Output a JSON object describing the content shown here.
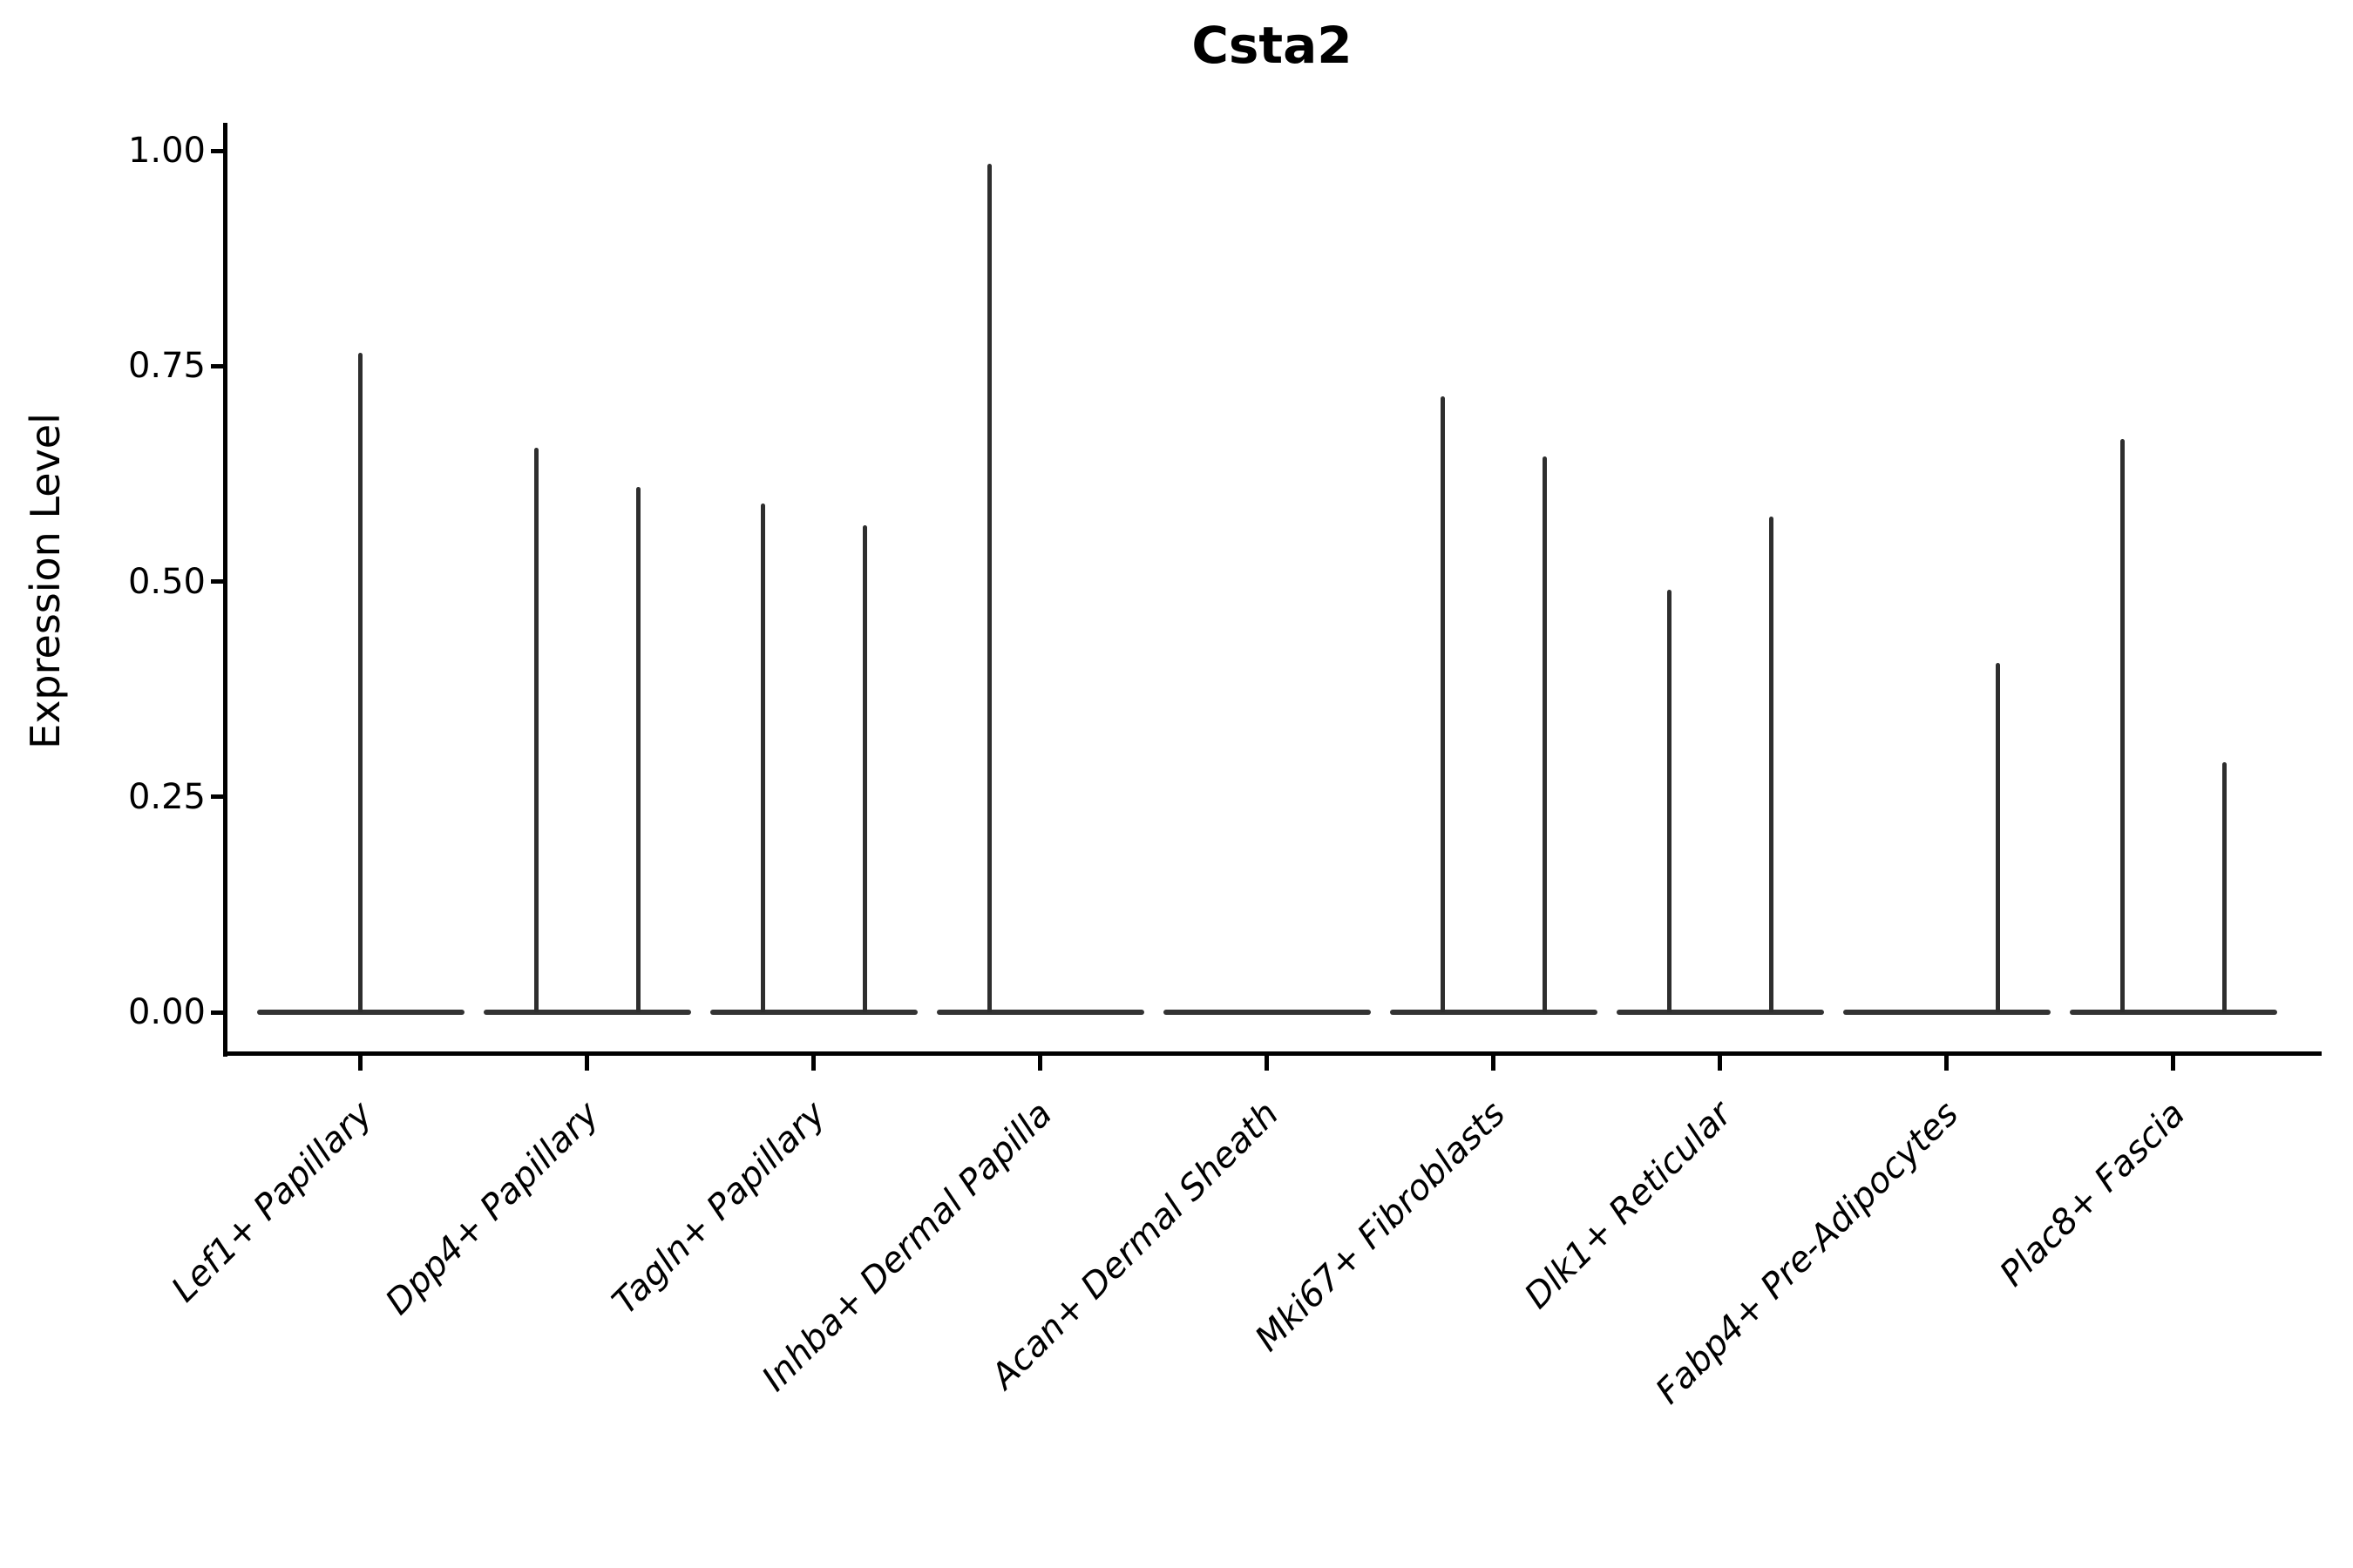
{
  "title": "Csta2",
  "y_axis": {
    "label": "Expression Level",
    "tick_labels": [
      "0.00",
      "0.25",
      "0.50",
      "0.75",
      "1.00"
    ],
    "tick_values": [
      0,
      0.25,
      0.5,
      0.75,
      1.0
    ]
  },
  "x_axis": {
    "categories": [
      "Lef1+ Papillary",
      "Dpp4+ Papillary",
      "Tagln+ Papillary",
      "Inhba+ Dermal Papilla",
      "Acan+ Dermal Sheath",
      "Mki67+ Fibroblasts",
      "Dlk1+ Reticular",
      "Fabp4+ Pre-Adipocytes",
      "Plac8+ Fascia"
    ]
  },
  "style": {
    "violin_color": "#2e2e2e",
    "axis_color": "#000000",
    "background": "#ffffff"
  },
  "chart_data": {
    "type": "violin",
    "title": "Csta2",
    "xlabel": "",
    "ylabel": "Expression Level",
    "ylim": [
      0,
      1.03
    ],
    "yticks": [
      0,
      0.25,
      0.5,
      0.75,
      1.0
    ],
    "ytick_labels": [
      "0.00",
      "0.25",
      "0.50",
      "0.75",
      "1.00"
    ],
    "grid": false,
    "legend": null,
    "categories": [
      "Lef1+ Papillary",
      "Dpp4+ Papillary",
      "Tagln+ Papillary",
      "Inhba+ Dermal Papilla",
      "Acan+ Dermal Sheath",
      "Mki67+ Fibroblasts",
      "Dlk1+ Reticular",
      "Fabp4+ Pre-Adipocytes",
      "Plac8+ Fascia"
    ],
    "description": "Violin plot of Csta2 expression; each category shows a flat violin body at 0 with thin spikes up to the maximum expression of each sub-violin. Offset is the fraction of category width from the category center.",
    "series": [
      {
        "category": "Lef1+ Papillary",
        "baseline": 0,
        "peaks": [
          {
            "offset": 0,
            "max": 0.765
          }
        ]
      },
      {
        "category": "Dpp4+ Papillary",
        "baseline": 0,
        "peaks": [
          {
            "offset": -0.225,
            "max": 0.655
          },
          {
            "offset": 0.225,
            "max": 0.61
          }
        ]
      },
      {
        "category": "Tagln+ Papillary",
        "baseline": 0,
        "peaks": [
          {
            "offset": -0.225,
            "max": 0.59
          },
          {
            "offset": 0.225,
            "max": 0.565
          }
        ]
      },
      {
        "category": "Inhba+ Dermal Papilla",
        "baseline": 0,
        "peaks": [
          {
            "offset": -0.225,
            "max": 0.985
          }
        ]
      },
      {
        "category": "Acan+ Dermal Sheath",
        "baseline": 0,
        "peaks": []
      },
      {
        "category": "Mki67+ Fibroblasts",
        "baseline": 0,
        "peaks": [
          {
            "offset": -0.225,
            "max": 0.715
          },
          {
            "offset": 0.225,
            "max": 0.645
          }
        ]
      },
      {
        "category": "Dlk1+ Reticular",
        "baseline": 0,
        "peaks": [
          {
            "offset": -0.225,
            "max": 0.49
          },
          {
            "offset": 0.225,
            "max": 0.575
          }
        ]
      },
      {
        "category": "Fabp4+ Pre-Adipocytes",
        "baseline": 0,
        "peaks": [
          {
            "offset": 0.225,
            "max": 0.405
          }
        ]
      },
      {
        "category": "Plac8+ Fascia",
        "baseline": 0,
        "peaks": [
          {
            "offset": -0.225,
            "max": 0.665
          },
          {
            "offset": 0.225,
            "max": 0.29
          }
        ]
      }
    ]
  }
}
